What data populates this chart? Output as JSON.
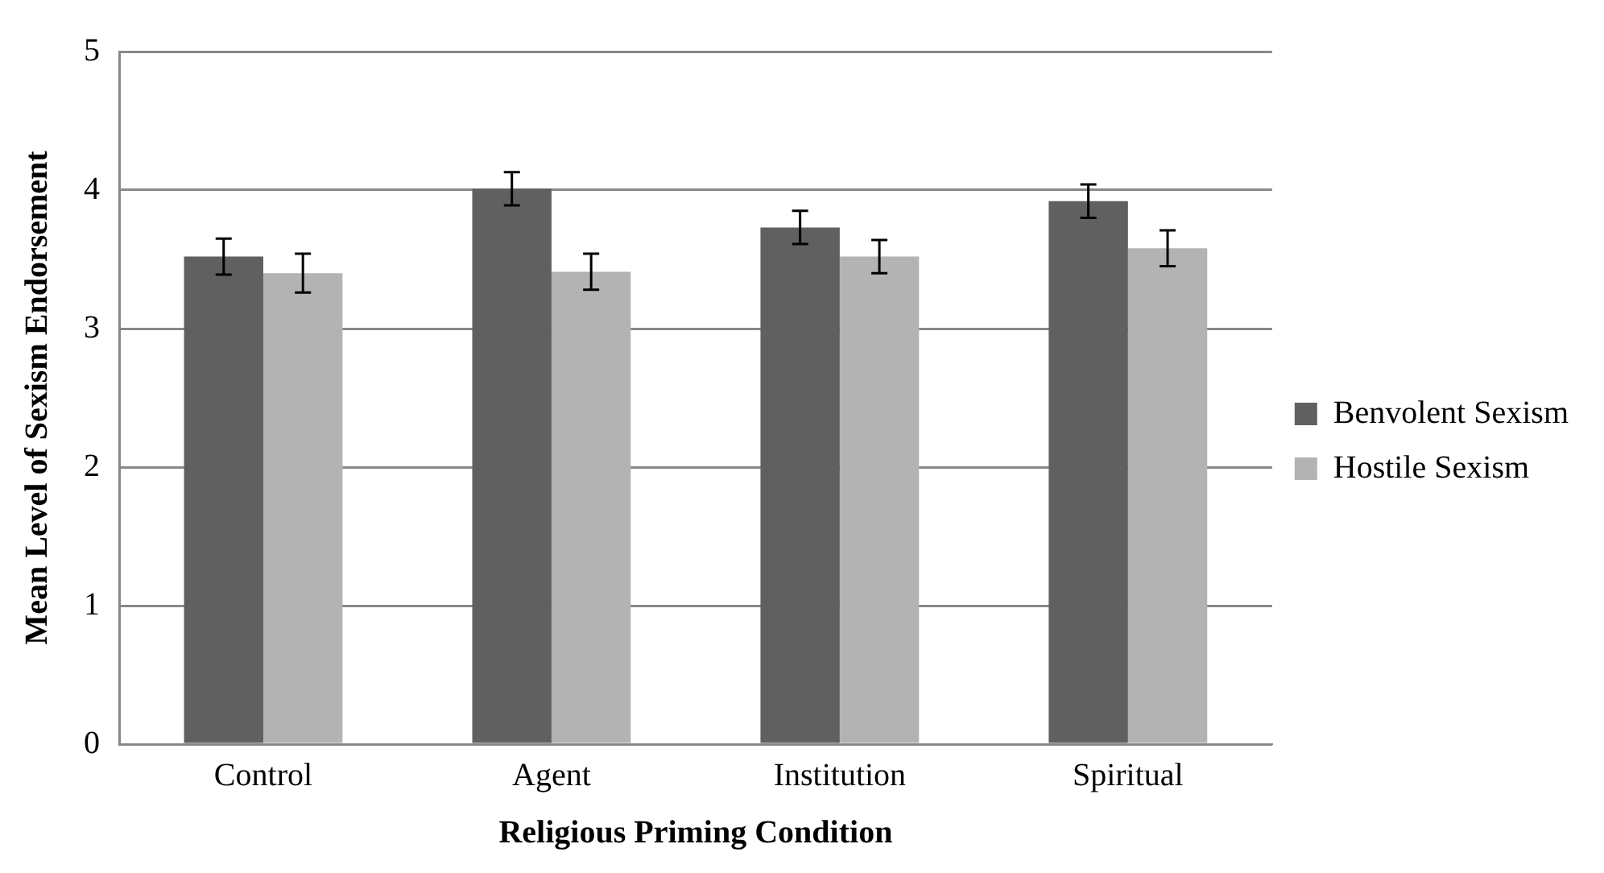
{
  "chart_data": {
    "type": "bar",
    "xlabel": "Religious Priming Condition",
    "ylabel": "Mean Level of Sexism Endorsement",
    "categories": [
      "Control",
      "Agent",
      "Institution",
      "Spiritual"
    ],
    "series": [
      {
        "name": "Benvolent Sexism",
        "color": "#606060",
        "values": [
          3.52,
          4.01,
          3.73,
          3.92
        ],
        "errors": [
          0.13,
          0.12,
          0.12,
          0.12
        ]
      },
      {
        "name": "Hostile Sexism",
        "color": "#b3b3b3",
        "values": [
          3.4,
          3.41,
          3.52,
          3.58
        ],
        "errors": [
          0.14,
          0.13,
          0.12,
          0.13
        ]
      }
    ],
    "ylim": [
      0,
      5
    ],
    "yticks": [
      0,
      1,
      2,
      3,
      4,
      5
    ],
    "grid": "y",
    "legend": "right"
  }
}
